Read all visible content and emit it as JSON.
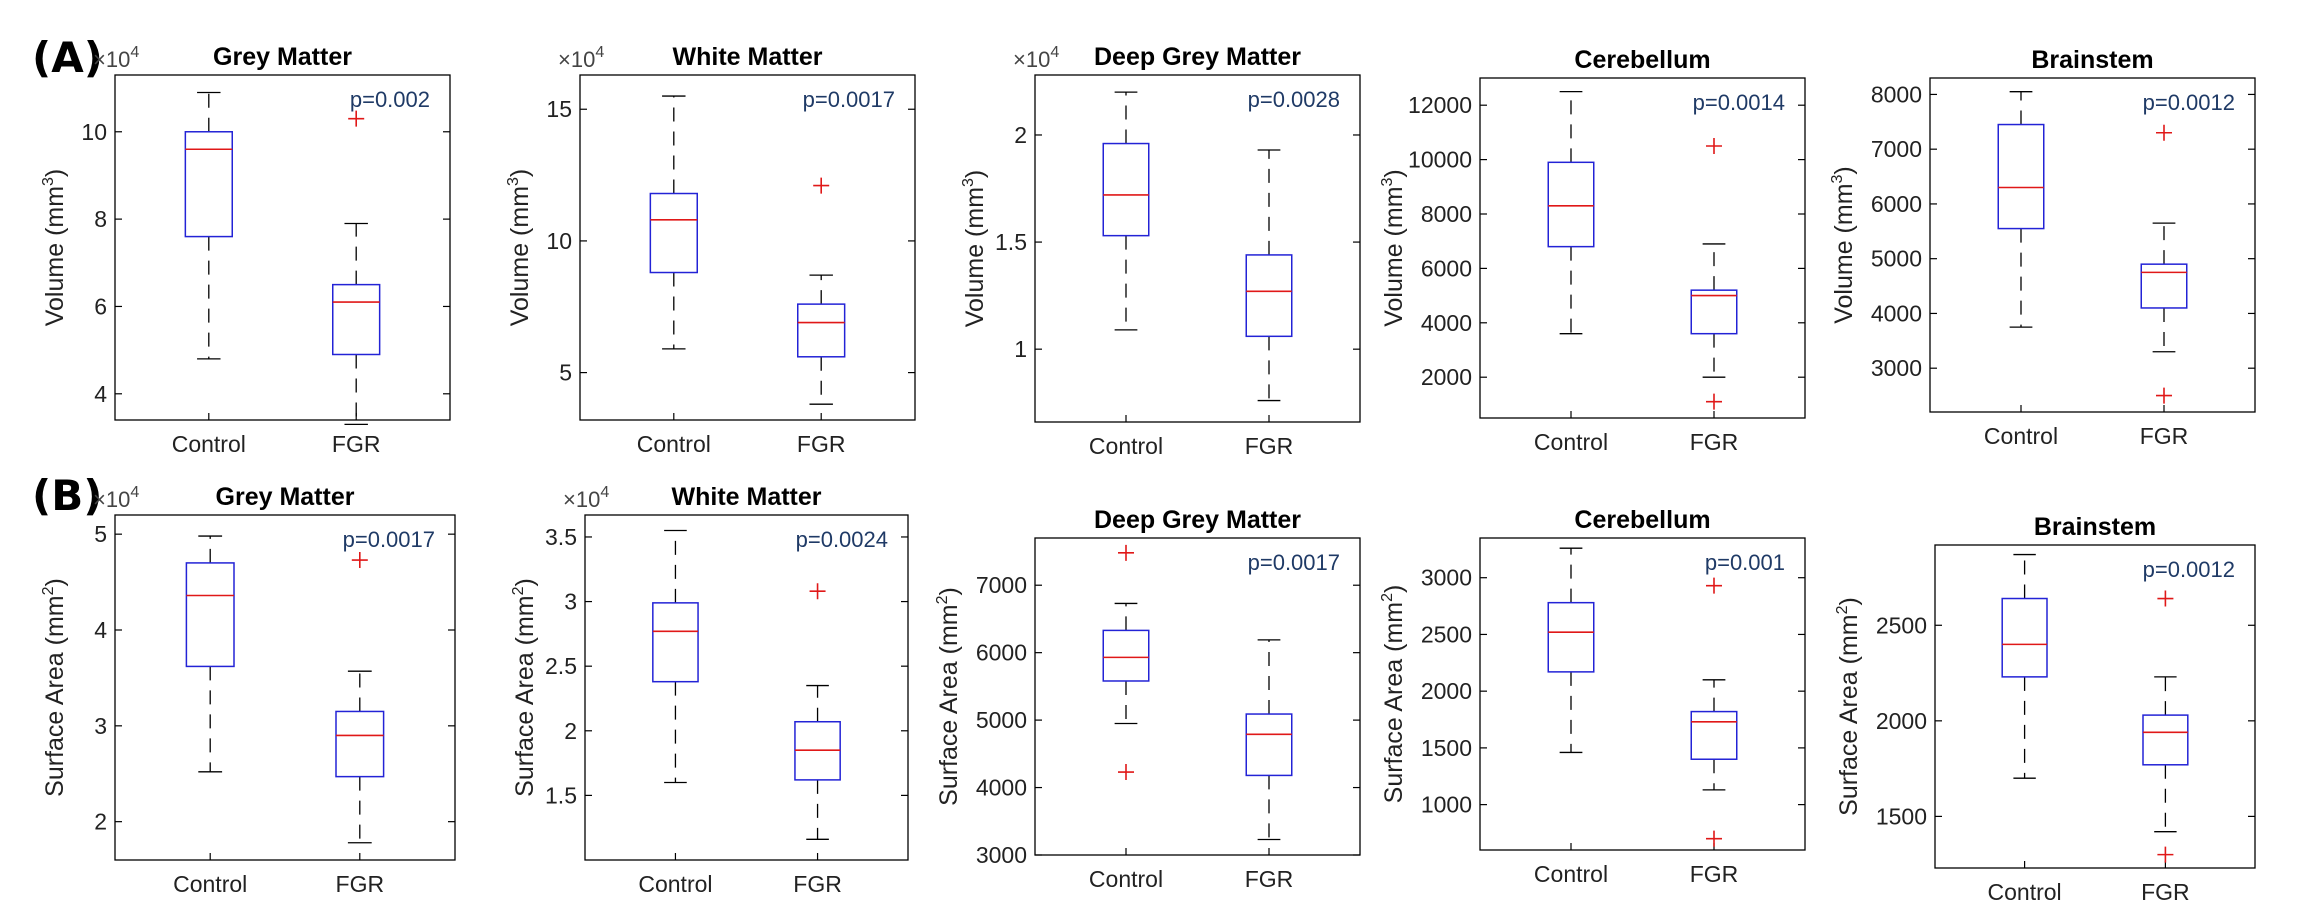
{
  "panel_labels": [
    "(A)",
    "(B)"
  ],
  "rows": [
    {
      "label": "(A)",
      "ylabel_main": "Volume (mm",
      "ylabel_sup": "3",
      "ylabel_close": ")",
      "charts": [
        {
          "title": "Grey Matter",
          "pvalue": "p=0.002",
          "exponent_base": "×10",
          "exponent_power": "4",
          "ylim": [
            3.4,
            11.3
          ],
          "yticks": [
            "4",
            "6",
            "8",
            "10"
          ],
          "ytick_values": [
            4,
            6,
            8,
            10
          ],
          "boxes": [
            {
              "category": "Control",
              "whisker_low": 4.8,
              "q1": 7.6,
              "median": 9.6,
              "q3": 10.0,
              "whisker_high": 10.9,
              "outliers": []
            },
            {
              "category": "FGR",
              "whisker_low": 3.3,
              "q1": 4.9,
              "median": 6.1,
              "q3": 6.5,
              "whisker_high": 7.9,
              "outliers": [
                10.3
              ]
            }
          ]
        },
        {
          "title": "White Matter",
          "pvalue": "p=0.0017",
          "exponent_base": "×10",
          "exponent_power": "4",
          "ylim": [
            3.2,
            16.3
          ],
          "yticks": [
            "5",
            "10",
            "15"
          ],
          "ytick_values": [
            5,
            10,
            15
          ],
          "boxes": [
            {
              "category": "Control",
              "whisker_low": 5.9,
              "q1": 8.8,
              "median": 10.8,
              "q3": 11.8,
              "whisker_high": 15.5,
              "outliers": []
            },
            {
              "category": "FGR",
              "whisker_low": 3.8,
              "q1": 5.6,
              "median": 6.9,
              "q3": 7.6,
              "whisker_high": 8.7,
              "outliers": [
                12.1
              ]
            }
          ]
        },
        {
          "title": "Deep Grey Matter",
          "pvalue": "p=0.0028",
          "exponent_base": "×10",
          "exponent_power": "4",
          "ylim": [
            0.66,
            2.28
          ],
          "yticks": [
            "1",
            "1.5",
            "2"
          ],
          "ytick_values": [
            1,
            1.5,
            2
          ],
          "boxes": [
            {
              "category": "Control",
              "whisker_low": 1.09,
              "q1": 1.53,
              "median": 1.72,
              "q3": 1.96,
              "whisker_high": 2.2,
              "outliers": []
            },
            {
              "category": "FGR",
              "whisker_low": 0.76,
              "q1": 1.06,
              "median": 1.27,
              "q3": 1.44,
              "whisker_high": 1.93,
              "outliers": []
            }
          ]
        },
        {
          "title": "Cerebellum",
          "pvalue": "p=0.0014",
          "exponent_base": "",
          "exponent_power": "",
          "ylim": [
            500,
            13000
          ],
          "yticks": [
            "2000",
            "4000",
            "6000",
            "8000",
            "10000",
            "12000"
          ],
          "ytick_values": [
            2000,
            4000,
            6000,
            8000,
            10000,
            12000
          ],
          "boxes": [
            {
              "category": "Control",
              "whisker_low": 3600,
              "q1": 6800,
              "median": 8300,
              "q3": 9900,
              "whisker_high": 12500,
              "outliers": []
            },
            {
              "category": "FGR",
              "whisker_low": 2000,
              "q1": 3600,
              "median": 5000,
              "q3": 5200,
              "whisker_high": 6900,
              "outliers": [
                10500,
                1100
              ]
            }
          ]
        },
        {
          "title": "Brainstem",
          "pvalue": "p=0.0012",
          "exponent_base": "",
          "exponent_power": "",
          "ylim": [
            2200,
            8300
          ],
          "yticks": [
            "3000",
            "4000",
            "5000",
            "6000",
            "7000",
            "8000"
          ],
          "ytick_values": [
            3000,
            4000,
            5000,
            6000,
            7000,
            8000
          ],
          "boxes": [
            {
              "category": "Control",
              "whisker_low": 3750,
              "q1": 5550,
              "median": 6300,
              "q3": 7450,
              "whisker_high": 8050,
              "outliers": []
            },
            {
              "category": "FGR",
              "whisker_low": 3300,
              "q1": 4100,
              "median": 4750,
              "q3": 4900,
              "whisker_high": 5650,
              "outliers": [
                7300,
                2500
              ]
            }
          ]
        }
      ]
    },
    {
      "label": "(B)",
      "ylabel_main": "Surface Area (mm",
      "ylabel_sup": "2",
      "ylabel_close": ")",
      "charts": [
        {
          "title": "Grey Matter",
          "pvalue": "p=0.0017",
          "exponent_base": "×10",
          "exponent_power": "4",
          "ylim": [
            1.6,
            5.2
          ],
          "yticks": [
            "2",
            "3",
            "4",
            "5"
          ],
          "ytick_values": [
            2,
            3,
            4,
            5
          ],
          "boxes": [
            {
              "category": "Control",
              "whisker_low": 2.52,
              "q1": 3.62,
              "median": 4.36,
              "q3": 4.7,
              "whisker_high": 4.98,
              "outliers": []
            },
            {
              "category": "FGR",
              "whisker_low": 1.78,
              "q1": 2.47,
              "median": 2.9,
              "q3": 3.15,
              "whisker_high": 3.57,
              "outliers": [
                4.73
              ]
            }
          ]
        },
        {
          "title": "White Matter",
          "pvalue": "p=0.0024",
          "exponent_base": "×10",
          "exponent_power": "4",
          "ylim": [
            1.0,
            3.67
          ],
          "yticks": [
            "1.5",
            "2",
            "2.5",
            "3",
            "3.5"
          ],
          "ytick_values": [
            1.5,
            2,
            2.5,
            3,
            3.5
          ],
          "boxes": [
            {
              "category": "Control",
              "whisker_low": 1.6,
              "q1": 2.38,
              "median": 2.77,
              "q3": 2.99,
              "whisker_high": 3.55,
              "outliers": []
            },
            {
              "category": "FGR",
              "whisker_low": 1.16,
              "q1": 1.62,
              "median": 1.85,
              "q3": 2.07,
              "whisker_high": 2.35,
              "outliers": [
                3.08
              ]
            }
          ]
        },
        {
          "title": "Deep Grey Matter",
          "pvalue": "p=0.0017",
          "exponent_base": "",
          "exponent_power": "",
          "ylim": [
            3000,
            7700
          ],
          "yticks": [
            "3000",
            "4000",
            "5000",
            "6000",
            "7000"
          ],
          "ytick_values": [
            3000,
            4000,
            5000,
            6000,
            7000
          ],
          "boxes": [
            {
              "category": "Control",
              "whisker_low": 4950,
              "q1": 5580,
              "median": 5930,
              "q3": 6330,
              "whisker_high": 6730,
              "outliers": [
                7480,
                4230
              ]
            },
            {
              "category": "FGR",
              "whisker_low": 3230,
              "q1": 4180,
              "median": 4790,
              "q3": 5090,
              "whisker_high": 6190,
              "outliers": []
            }
          ]
        },
        {
          "title": "Cerebellum",
          "pvalue": "p=0.001",
          "exponent_base": "",
          "exponent_power": "",
          "ylim": [
            600,
            3350
          ],
          "yticks": [
            "1000",
            "1500",
            "2000",
            "2500",
            "3000"
          ],
          "ytick_values": [
            1000,
            1500,
            2000,
            2500,
            3000
          ],
          "boxes": [
            {
              "category": "Control",
              "whisker_low": 1460,
              "q1": 2170,
              "median": 2520,
              "q3": 2780,
              "whisker_high": 3260,
              "outliers": []
            },
            {
              "category": "FGR",
              "whisker_low": 1130,
              "q1": 1400,
              "median": 1730,
              "q3": 1820,
              "whisker_high": 2100,
              "outliers": [
                2930,
                700
              ]
            }
          ]
        },
        {
          "title": "Brainstem",
          "pvalue": "p=0.0012",
          "exponent_base": "",
          "exponent_power": "",
          "ylim": [
            1230,
            2920
          ],
          "yticks": [
            "1500",
            "2000",
            "2500"
          ],
          "ytick_values": [
            1500,
            2000,
            2500
          ],
          "boxes": [
            {
              "category": "Control",
              "whisker_low": 1700,
              "q1": 2230,
              "median": 2400,
              "q3": 2640,
              "whisker_high": 2870,
              "outliers": []
            },
            {
              "category": "FGR",
              "whisker_low": 1420,
              "q1": 1770,
              "median": 1940,
              "q3": 2030,
              "whisker_high": 2230,
              "outliers": [
                2640,
                1300
              ]
            }
          ]
        }
      ]
    }
  ],
  "chart_data": {
    "type": "box",
    "categories": [
      "Control",
      "FGR"
    ],
    "note": "10 box-plot panels; values in rows[].charts[] (Volume in mm^3, Surface Area in mm^2)"
  },
  "colors": {
    "box": "#2323d6",
    "median": "#e01818",
    "whisker": "#000000",
    "outlier": "#e01818",
    "axis": "#000000"
  }
}
